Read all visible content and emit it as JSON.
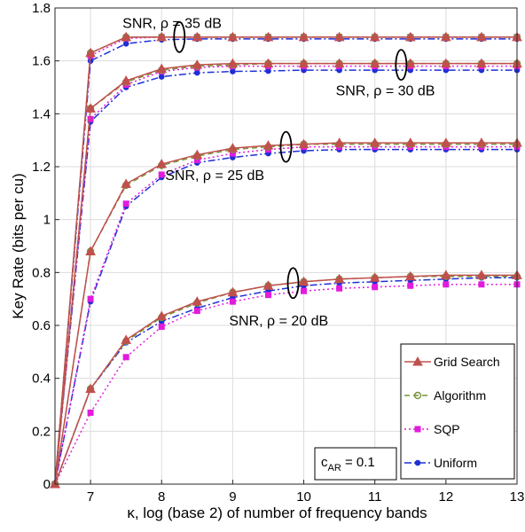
{
  "chart_data": {
    "type": "line",
    "xlabel": "κ, log (base 2) of number of frequency bands",
    "ylabel": "Key Rate (bits per cu)",
    "xlim": [
      6.5,
      13
    ],
    "ylim": [
      0,
      1.8
    ],
    "x_ticks": [
      7,
      8,
      9,
      10,
      11,
      12,
      13
    ],
    "y_ticks": [
      0,
      0.2,
      0.4,
      0.6,
      0.8,
      1,
      1.2,
      1.4,
      1.6,
      1.8
    ],
    "x_tick_labels": [
      "7",
      "8",
      "9",
      "10",
      "11",
      "12",
      "13"
    ],
    "y_tick_labels": [
      "0",
      "0.2",
      "0.4",
      "0.6",
      "0.8",
      "1",
      "1.2",
      "1.4",
      "1.6",
      "1.8"
    ],
    "grid": true,
    "legend_placement": "bottom-right",
    "x": [
      6.5,
      7,
      7.5,
      8,
      8.5,
      9,
      9.5,
      10,
      10.5,
      11,
      11.5,
      12,
      12.5,
      13
    ],
    "methods": [
      {
        "name": "Grid Search",
        "color": "#c0504d",
        "marker": "triangle",
        "dash": "solid"
      },
      {
        "name": "Algorithm",
        "color": "#77933c",
        "marker": "circle",
        "dash": "dashed"
      },
      {
        "name": "SQP",
        "color": "#e21bde",
        "marker": "square",
        "dash": "dotted"
      },
      {
        "name": "Uniform",
        "color": "#1f2fd6",
        "marker": "dot",
        "dash": "dashdot"
      }
    ],
    "groups": [
      {
        "label": "SNR, ρ = 35 dB",
        "series": [
          [
            0,
            1.63,
            1.69,
            1.69,
            1.69,
            1.69,
            1.69,
            1.69,
            1.69,
            1.69,
            1.69,
            1.69,
            1.69,
            1.69
          ],
          [
            0,
            1.63,
            1.69,
            1.69,
            1.69,
            1.69,
            1.69,
            1.69,
            1.69,
            1.69,
            1.69,
            1.69,
            1.69,
            1.69
          ],
          [
            0,
            1.62,
            1.685,
            1.69,
            1.69,
            1.69,
            1.69,
            1.69,
            1.69,
            1.69,
            1.69,
            1.69,
            1.69,
            1.69
          ],
          [
            0,
            1.6,
            1.665,
            1.68,
            1.683,
            1.683,
            1.683,
            1.683,
            1.683,
            1.683,
            1.683,
            1.683,
            1.683,
            1.683
          ]
        ]
      },
      {
        "label": "SNR, ρ = 30 dB",
        "series": [
          [
            0,
            1.42,
            1.525,
            1.57,
            1.585,
            1.59,
            1.59,
            1.59,
            1.59,
            1.59,
            1.59,
            1.59,
            1.59,
            1.59
          ],
          [
            0,
            1.42,
            1.52,
            1.565,
            1.58,
            1.585,
            1.59,
            1.59,
            1.59,
            1.59,
            1.59,
            1.59,
            1.59,
            1.59
          ],
          [
            0,
            1.38,
            1.51,
            1.56,
            1.575,
            1.58,
            1.58,
            1.58,
            1.58,
            1.58,
            1.58,
            1.58,
            1.58,
            1.58
          ],
          [
            0,
            1.37,
            1.5,
            1.54,
            1.555,
            1.56,
            1.562,
            1.565,
            1.565,
            1.565,
            1.565,
            1.565,
            1.565,
            1.565
          ]
        ]
      },
      {
        "label": "SNR, ρ = 25 dB",
        "series": [
          [
            0,
            0.88,
            1.135,
            1.21,
            1.245,
            1.27,
            1.28,
            1.285,
            1.29,
            1.29,
            1.29,
            1.29,
            1.29,
            1.29
          ],
          [
            0,
            0.88,
            1.13,
            1.205,
            1.24,
            1.265,
            1.275,
            1.285,
            1.285,
            1.285,
            1.285,
            1.285,
            1.285,
            1.285
          ],
          [
            0,
            0.7,
            1.06,
            1.17,
            1.225,
            1.25,
            1.265,
            1.275,
            1.275,
            1.275,
            1.275,
            1.275,
            1.275,
            1.275
          ],
          [
            0,
            0.69,
            1.05,
            1.16,
            1.215,
            1.235,
            1.25,
            1.26,
            1.265,
            1.265,
            1.265,
            1.265,
            1.265,
            1.265
          ]
        ]
      },
      {
        "label": "SNR, ρ = 20 dB",
        "series": [
          [
            0,
            0.36,
            0.545,
            0.635,
            0.69,
            0.725,
            0.75,
            0.765,
            0.775,
            0.78,
            0.785,
            0.79,
            0.79,
            0.79
          ],
          [
            0,
            0.36,
            0.54,
            0.63,
            0.685,
            0.725,
            0.75,
            0.765,
            0.775,
            0.78,
            0.785,
            0.785,
            0.785,
            0.785
          ],
          [
            0,
            0.27,
            0.48,
            0.595,
            0.655,
            0.69,
            0.715,
            0.73,
            0.74,
            0.745,
            0.75,
            0.755,
            0.755,
            0.755
          ],
          [
            0,
            0.36,
            0.535,
            0.615,
            0.665,
            0.705,
            0.73,
            0.75,
            0.76,
            0.765,
            0.77,
            0.775,
            0.78,
            0.78
          ]
        ]
      }
    ],
    "group_annotations": [
      {
        "label_x": 7.45,
        "label_y": 1.725,
        "ellipse_x": 8.25,
        "ellipse_y": 1.69
      },
      {
        "label_x": 10.45,
        "label_y": 1.47,
        "ellipse_x": 11.37,
        "ellipse_y": 1.585
      },
      {
        "label_x": 8.05,
        "label_y": 1.15,
        "ellipse_x": 9.75,
        "ellipse_y": 1.275
      },
      {
        "label_x": 8.95,
        "label_y": 0.6,
        "ellipse_x": 9.85,
        "ellipse_y": 0.76
      }
    ],
    "annotation_box": {
      "text_main": "c",
      "text_sub": "AR",
      "text_rest": " = 0.1"
    }
  }
}
